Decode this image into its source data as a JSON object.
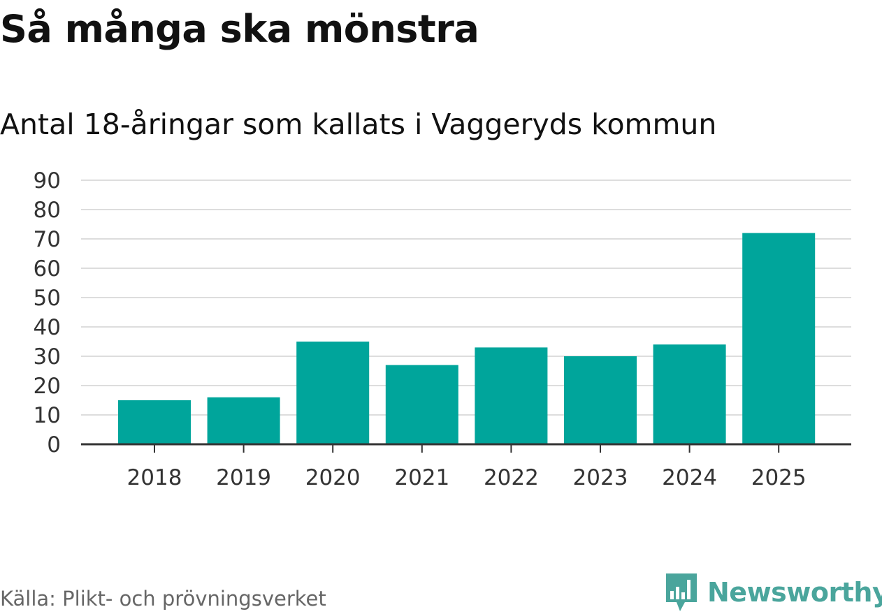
{
  "title": "Så många ska mönstra",
  "subtitle": "Antal 18-åringar som kallats i Vaggeryds kommun",
  "source": "Källa: Plikt- och prövningsverket",
  "brand": {
    "name": "Newsworthy",
    "logo_icon": "newsworthy-logo-icon",
    "color": "#4aa59c"
  },
  "colors": {
    "bar": "#00a59b",
    "grid": "#dddddd",
    "axis": "#333333",
    "tick_text": "#333333"
  },
  "chart_data": {
    "type": "bar",
    "title": "Så många ska mönstra",
    "subtitle": "Antal 18-åringar som kallats i Vaggeryds kommun",
    "categories": [
      "2018",
      "2019",
      "2020",
      "2021",
      "2022",
      "2023",
      "2024",
      "2025"
    ],
    "values": [
      15,
      16,
      35,
      27,
      33,
      30,
      34,
      72
    ],
    "ylim": [
      0,
      90
    ],
    "yticks": [
      0,
      10,
      20,
      30,
      40,
      50,
      60,
      70,
      80,
      90
    ],
    "grid": true,
    "xlabel": "",
    "ylabel": ""
  }
}
